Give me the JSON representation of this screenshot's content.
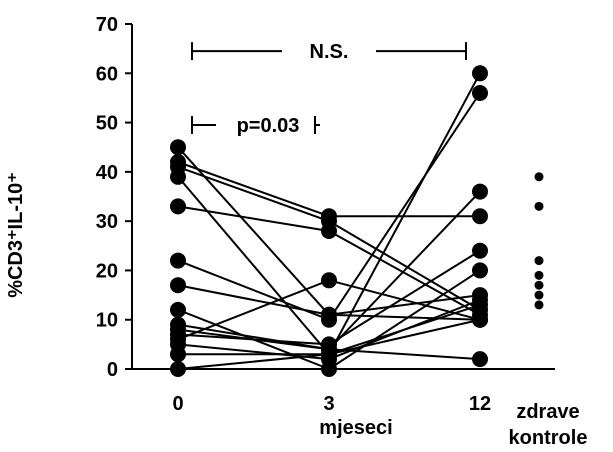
{
  "chart_data": {
    "type": "scatter",
    "ylabel": "%CD3⁺IL-10⁺",
    "xlabel": "mjeseci",
    "ylim": [
      0,
      70
    ],
    "yticks": [
      "0",
      "10",
      "20",
      "30",
      "40",
      "50",
      "60",
      "70"
    ],
    "xticks": [
      "0",
      "3",
      "12"
    ],
    "control_group_label_line1": "zdrave",
    "control_group_label_line2": "kontrole",
    "annotations": [
      {
        "text": "N.S.",
        "from": "0",
        "to": "12"
      },
      {
        "text": "p=0.03",
        "from": "0",
        "to": "3"
      }
    ],
    "patients": [
      [
        45,
        11,
        10
      ],
      [
        42,
        31,
        31
      ],
      [
        41,
        30,
        12
      ],
      [
        39,
        3,
        60
      ],
      [
        33,
        28,
        11
      ],
      [
        22,
        10,
        56
      ],
      [
        17,
        11,
        15
      ],
      [
        12,
        0,
        20
      ],
      [
        9,
        4,
        36
      ],
      [
        8,
        4,
        2
      ],
      [
        7,
        5,
        24
      ],
      [
        6,
        18,
        10
      ],
      [
        5,
        2,
        14
      ],
      [
        3,
        3,
        13
      ],
      [
        0,
        3,
        10
      ]
    ],
    "controls": [
      39,
      33,
      22,
      19,
      17,
      15,
      13
    ]
  }
}
